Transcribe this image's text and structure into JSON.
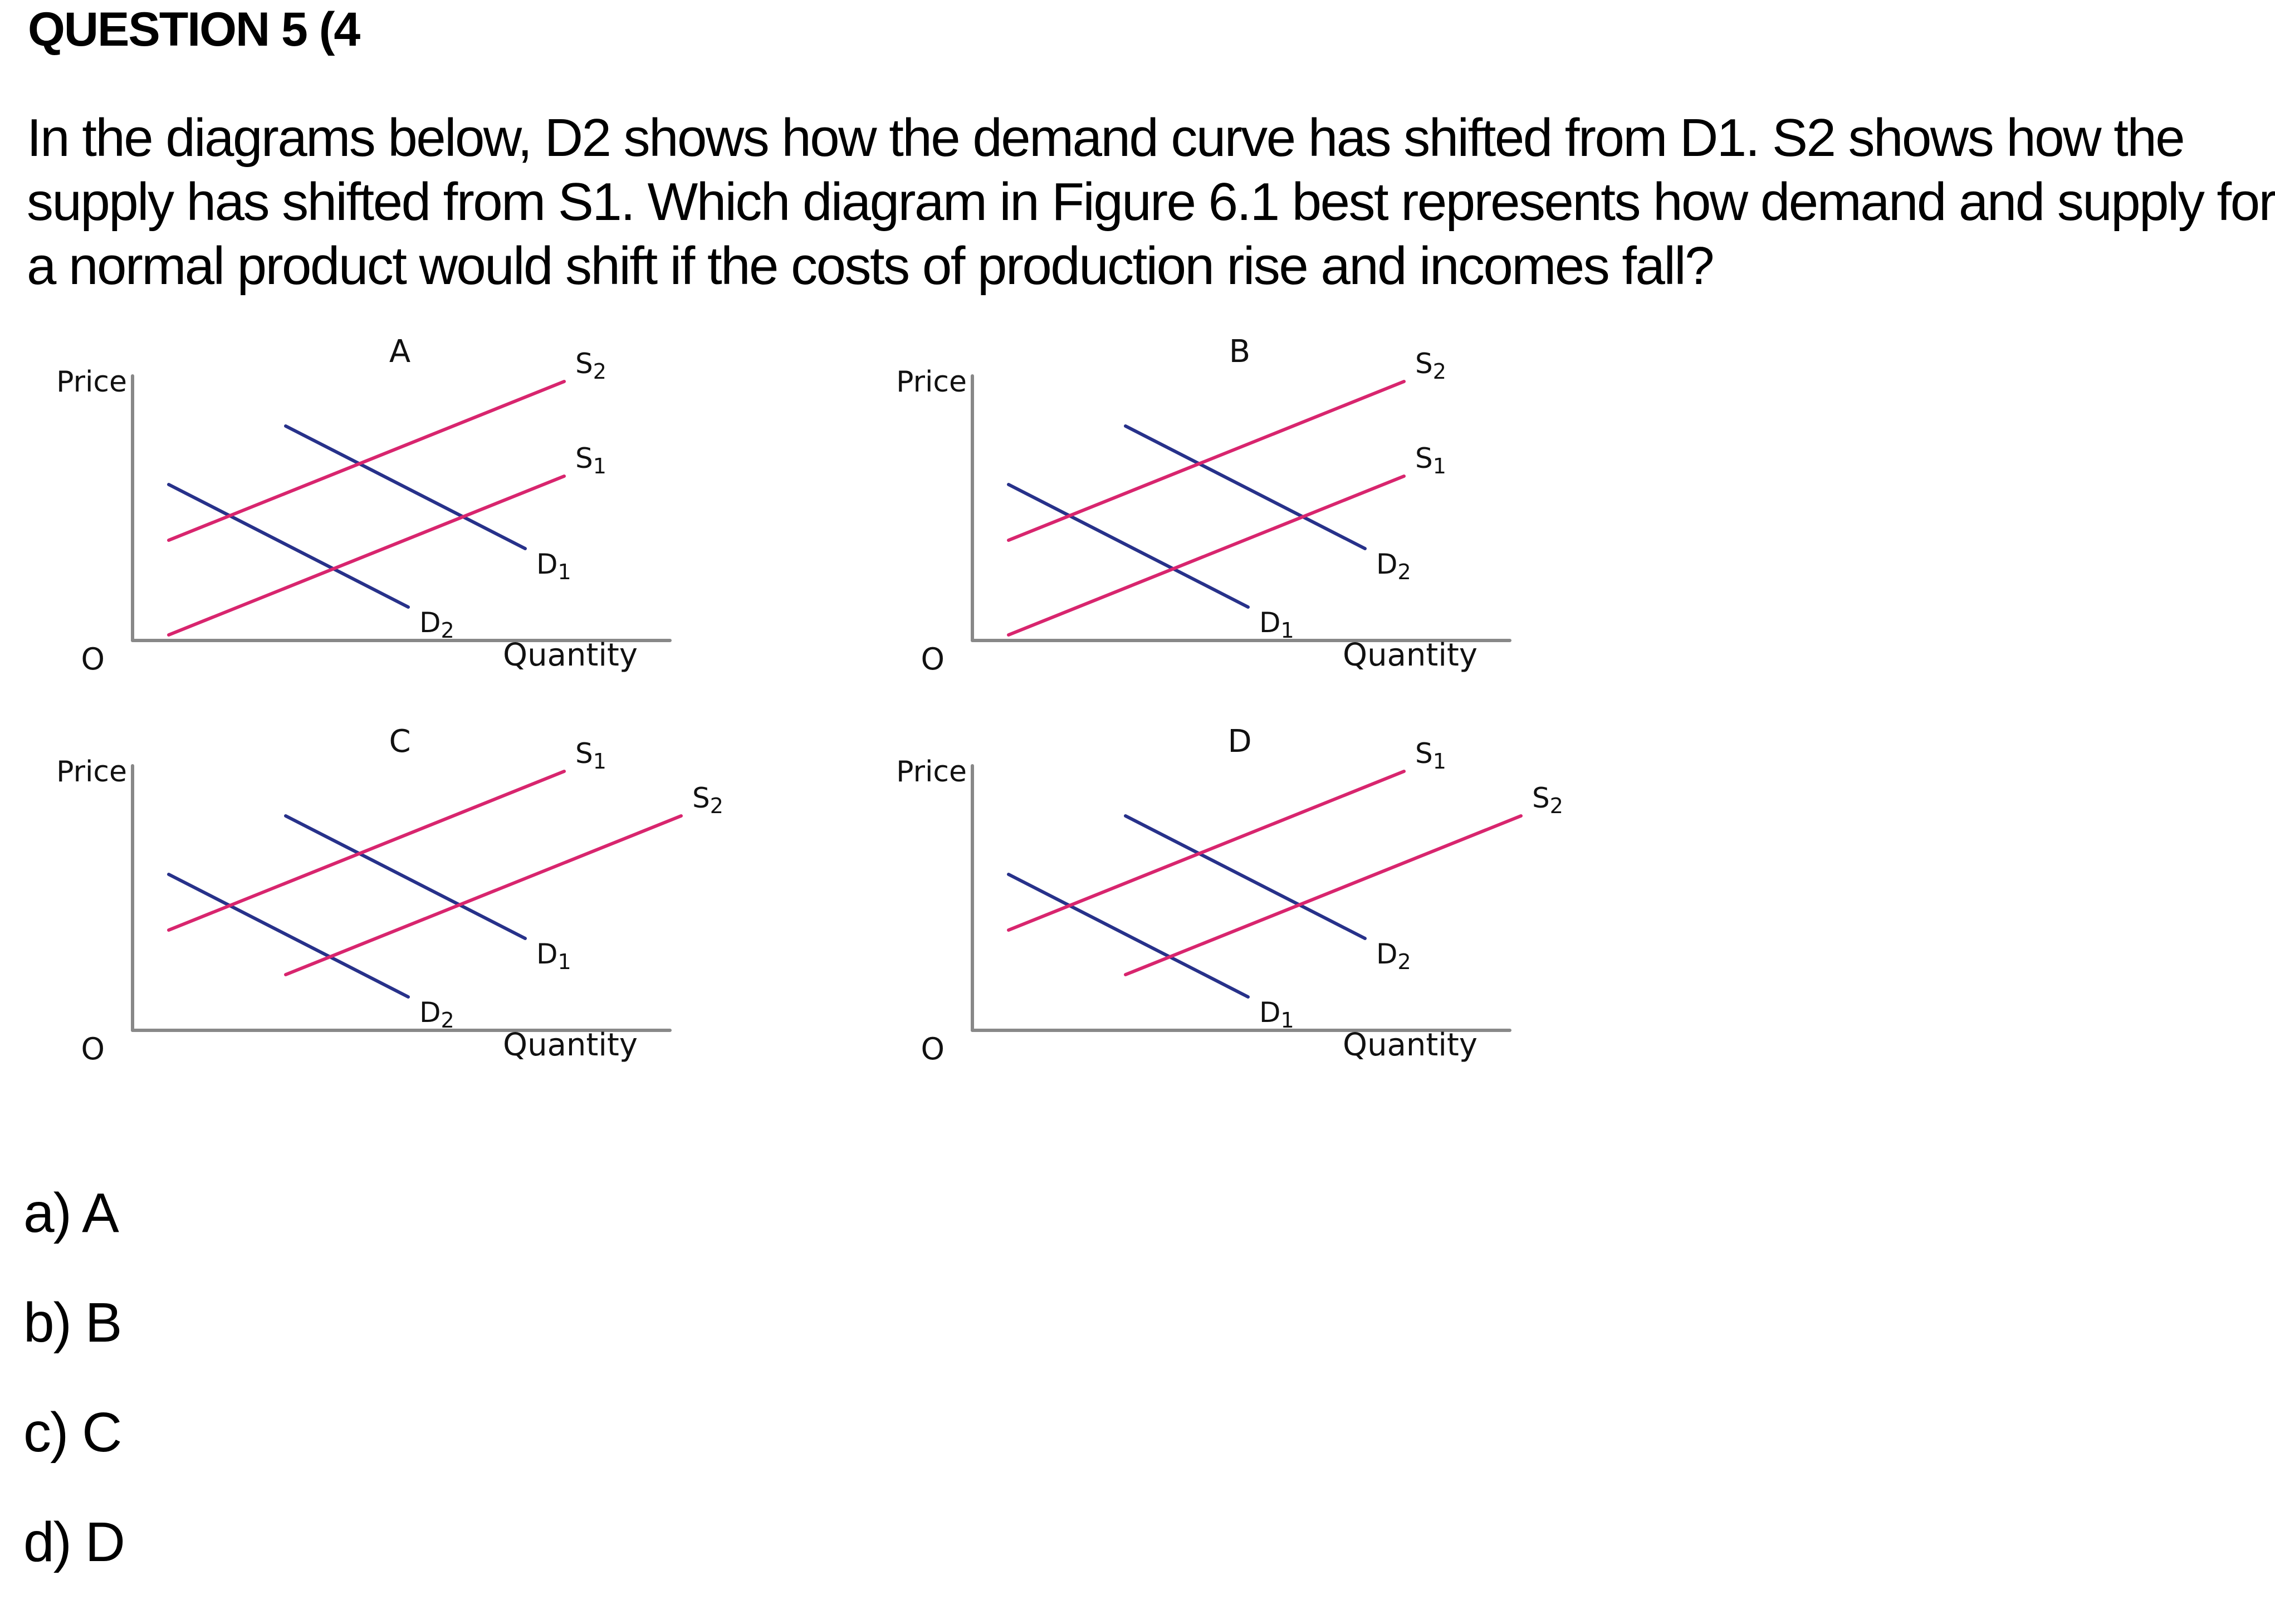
{
  "question": {
    "title": "QUESTION 5 (4",
    "lines": [
      "In the diagrams below, D2 shows how the demand curve has shifted from D1. S2 shows how the",
      "supply has shifted from S1. Which diagram in Figure 6.1 best represents how demand and supply for",
      "a normal product would shift if the costs of production rise and incomes fall?"
    ]
  },
  "colors": {
    "demand": "#27318a",
    "supply": "#d8256e",
    "axis": "#888888"
  },
  "figure": {
    "axis_price": "Price",
    "axis_quantity": "Quantity",
    "origin": "O",
    "diagrams": [
      {
        "label": "A",
        "demand_shift": "left",
        "supply_shift": "left",
        "labels": {
          "s1": "S1",
          "s2": "S2",
          "d1": "D1",
          "d2": "D2"
        }
      },
      {
        "label": "B",
        "demand_shift": "right",
        "supply_shift": "left",
        "labels": {
          "s1": "S1",
          "s2": "S2",
          "d1": "D1",
          "d2": "D2"
        }
      },
      {
        "label": "C",
        "demand_shift": "left",
        "supply_shift": "right",
        "labels": {
          "s1": "S1",
          "s2": "S2",
          "d1": "D1",
          "d2": "D2"
        }
      },
      {
        "label": "D",
        "demand_shift": "right",
        "supply_shift": "right",
        "labels": {
          "s1": "S1",
          "s2": "S2",
          "d1": "D1",
          "d2": "D2"
        }
      }
    ]
  },
  "options": [
    {
      "key": "a",
      "text": "a) A"
    },
    {
      "key": "b",
      "text": "b) B"
    },
    {
      "key": "c",
      "text": "c) C"
    },
    {
      "key": "d",
      "text": "d) D"
    }
  ]
}
